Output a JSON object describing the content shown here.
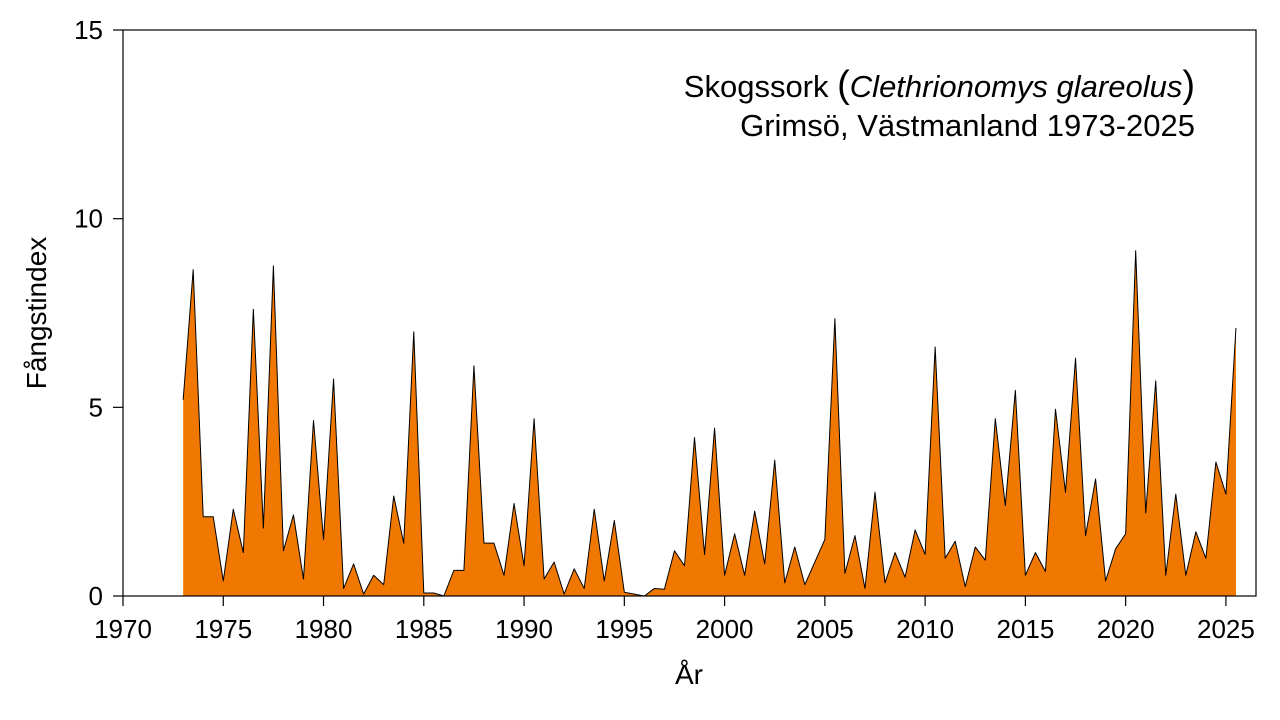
{
  "chart_data": {
    "type": "area",
    "title": {
      "common_name": "Skogssork",
      "open_paren": "(",
      "scientific_name": "Clethrionomys glareolus",
      "close_paren": ")",
      "subtitle": "Grimsö, Västmanland 1973-2025"
    },
    "xlabel": "År",
    "ylabel": "Fångstindex",
    "xlim": [
      1970,
      2026.5
    ],
    "ylim": [
      0,
      15
    ],
    "xticks": [
      1970,
      1975,
      1980,
      1985,
      1990,
      1995,
      2000,
      2005,
      2010,
      2015,
      2020,
      2025
    ],
    "yticks": [
      0,
      5,
      10,
      15
    ],
    "grid": false,
    "legend": "none",
    "fill_color": "#F07800",
    "line_color": "#000000",
    "series": [
      {
        "x": [
          1973.0,
          1973.5,
          1974.0,
          1974.5,
          1975.0,
          1975.5,
          1976.0,
          1976.5,
          1977.0,
          1977.5,
          1978.0,
          1978.5,
          1979.0,
          1979.5,
          1980.0,
          1980.5,
          1981.0,
          1981.5,
          1982.0,
          1982.5,
          1983.0,
          1983.5,
          1984.0,
          1984.5,
          1985.0,
          1985.5,
          1986.0,
          1986.5,
          1987.0,
          1987.5,
          1988.0,
          1988.5,
          1989.0,
          1989.5,
          1990.0,
          1990.5,
          1991.0,
          1991.5,
          1992.0,
          1992.5,
          1993.0,
          1993.5,
          1994.0,
          1994.5,
          1995.0,
          1995.5,
          1996.0,
          1996.5,
          1997.0,
          1997.5,
          1998.0,
          1998.5,
          1999.0,
          1999.5,
          2000.0,
          2000.5,
          2001.0,
          2001.5,
          2002.0,
          2002.5,
          2003.0,
          2003.5,
          2004.0,
          2004.5,
          2005.0,
          2005.5,
          2006.0,
          2006.5,
          2007.0,
          2007.5,
          2008.0,
          2008.5,
          2009.0,
          2009.5,
          2010.0,
          2010.5,
          2011.0,
          2011.5,
          2012.0,
          2012.5,
          2013.0,
          2013.5,
          2014.0,
          2014.5,
          2015.0,
          2015.5,
          2016.0,
          2016.5,
          2017.0,
          2017.5,
          2018.0,
          2018.5,
          2019.0,
          2019.5,
          2020.0,
          2020.5,
          2021.0,
          2021.5,
          2022.0,
          2022.5,
          2023.0,
          2023.5,
          2024.0,
          2024.5,
          2025.0,
          2025.5
        ],
        "values": [
          5.2,
          8.65,
          2.1,
          2.1,
          0.4,
          2.3,
          1.15,
          7.6,
          1.8,
          8.75,
          1.2,
          2.15,
          0.45,
          4.65,
          1.5,
          5.75,
          0.2,
          0.85,
          0.05,
          0.55,
          0.3,
          2.65,
          1.4,
          7.0,
          0.08,
          0.08,
          0.0,
          0.68,
          0.68,
          6.1,
          1.4,
          1.4,
          0.55,
          2.45,
          0.8,
          4.7,
          0.45,
          0.9,
          0.05,
          0.72,
          0.2,
          2.3,
          0.4,
          2.0,
          0.1,
          0.05,
          0.0,
          0.2,
          0.18,
          1.2,
          0.8,
          4.2,
          1.1,
          4.45,
          0.55,
          1.65,
          0.55,
          2.25,
          0.85,
          3.6,
          0.35,
          1.3,
          0.3,
          0.9,
          1.5,
          7.35,
          0.6,
          1.6,
          0.2,
          2.75,
          0.35,
          1.15,
          0.5,
          1.75,
          1.1,
          6.6,
          1.0,
          1.45,
          0.25,
          1.3,
          0.95,
          4.7,
          2.4,
          5.45,
          0.55,
          1.15,
          0.65,
          4.95,
          2.75,
          6.3,
          1.6,
          3.1,
          0.4,
          1.25,
          1.65,
          9.15,
          2.2,
          5.7,
          0.55,
          2.7,
          0.55,
          1.7,
          1.0,
          3.55,
          2.7,
          7.1
        ]
      }
    ]
  }
}
